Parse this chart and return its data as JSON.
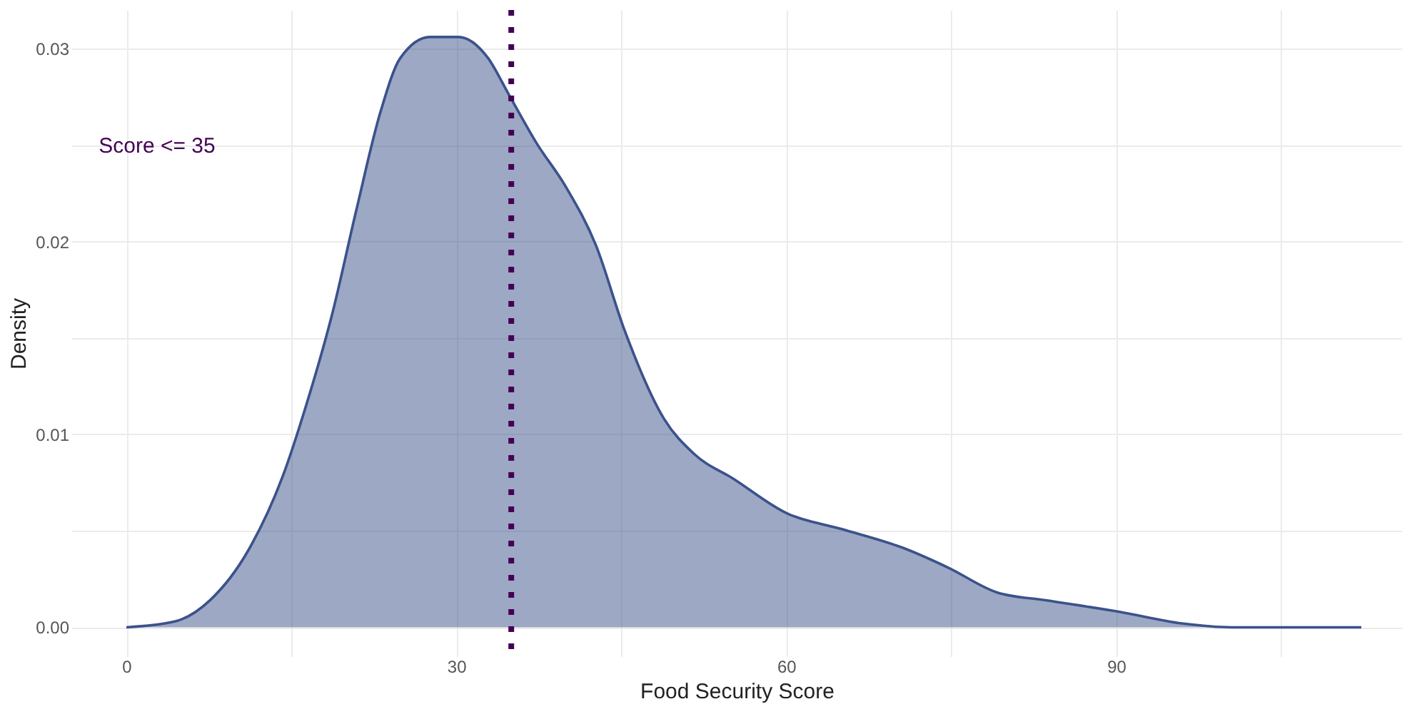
{
  "chart_data": {
    "type": "area",
    "xlabel": "Food Security Score",
    "ylabel": "Density",
    "x": [
      0,
      4.4,
      7.6,
      11.1,
      14.2,
      16.4,
      18.7,
      20.9,
      23.1,
      24.9,
      27.6,
      30.2,
      32.9,
      34.7,
      37.3,
      40,
      42.7,
      45.3,
      48.9,
      51.6,
      55.2,
      60.1,
      65,
      70.7,
      74.7,
      79.2,
      83.6,
      90.3,
      96,
      100.5,
      112.3
    ],
    "series": [
      {
        "color": "#3b528b",
        "values": [
          0,
          0.0003,
          0.0014,
          0.004,
          0.0078,
          0.0116,
          0.0162,
          0.0216,
          0.0267,
          0.0295,
          0.0306,
          0.0306,
          0.0295,
          0.0277,
          0.0251,
          0.0228,
          0.0198,
          0.0154,
          0.0108,
          0.009,
          0.0077,
          0.0059,
          0.0051,
          0.0041,
          0.0031,
          0.0018,
          0.0014,
          0.0008,
          0.0002,
          0,
          0
        ]
      }
    ],
    "ref_lines": [
      {
        "axis": "x",
        "value": 35,
        "color": "#440154",
        "line_style": "dotted"
      }
    ],
    "annotations": [
      "Score <= 35"
    ],
    "xlim": [
      -5,
      116
    ],
    "ylim": [
      -0.0015,
      0.032
    ],
    "xticks": [
      0,
      {
        "value": 15,
        "label": null
      },
      30,
      {
        "value": 45,
        "label": null
      },
      60,
      {
        "value": 75,
        "label": null
      },
      90,
      {
        "value": 105,
        "label": null
      }
    ],
    "yticks": [
      {
        "value": 0,
        "label": "0.00"
      },
      {
        "value": 0.005,
        "label": null
      },
      {
        "value": 0.01,
        "label": "0.01"
      },
      {
        "value": 0.015,
        "label": null
      },
      {
        "value": 0.02,
        "label": "0.02"
      },
      {
        "value": 0.025,
        "label": null
      },
      {
        "value": 0.03,
        "label": "0.03"
      }
    ],
    "grid": true
  }
}
